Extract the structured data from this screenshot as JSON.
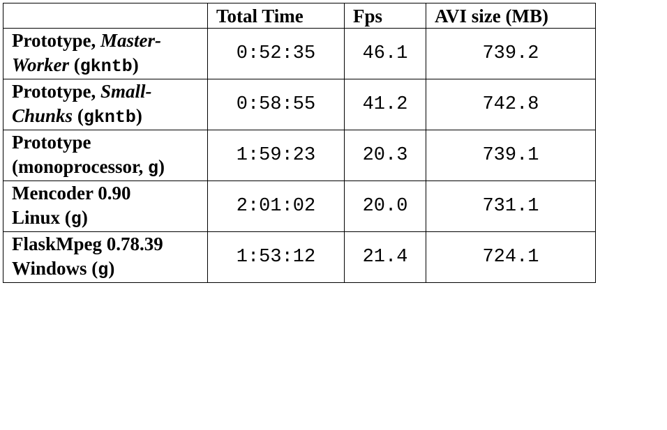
{
  "table": {
    "headers": [
      "",
      "Total Time",
      "Fps",
      "AVI size (MB)"
    ],
    "rows": [
      {
        "name_plain": "Prototype, ",
        "name_italic": "Master-Worker",
        "name_code": "gkntb",
        "total_time": "0:52:35",
        "fps": "46.1",
        "avi_size": "739.2"
      },
      {
        "name_plain": "Prototype, ",
        "name_italic": "Small-Chunks",
        "name_code": "gkntb",
        "total_time": "0:58:55",
        "fps": "41.2",
        "avi_size": "742.8"
      },
      {
        "name_line1": "Prototype",
        "name_line2_prefix": "(monoprocessor, ",
        "name_code": "g",
        "name_line2_suffix": ")",
        "total_time": "1:59:23",
        "fps": "20.3",
        "avi_size": "739.1"
      },
      {
        "name_line1": "Mencoder 0.90",
        "name_line2_prefix": "Linux (",
        "name_code": "g",
        "name_line2_suffix": ")",
        "total_time": "2:01:02",
        "fps": "20.0",
        "avi_size": "731.1"
      },
      {
        "name_line1": "FlaskMpeg 0.78.39",
        "name_line2_prefix": "Windows (",
        "name_code": "g",
        "name_line2_suffix": ")",
        "total_time": "1:53:12",
        "fps": "21.4",
        "avi_size": "724.1"
      }
    ]
  }
}
